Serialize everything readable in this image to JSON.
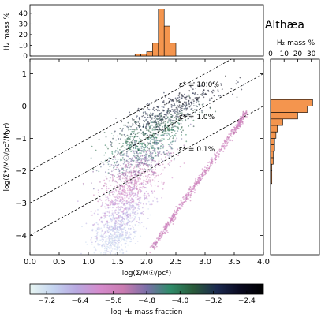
{
  "figure": {
    "title": "Althæa"
  },
  "chart_data": [
    {
      "type": "scatter",
      "name": "main",
      "xlabel": "log(Σ/M☉/pc²)",
      "ylabel": "log(Σ*/M☉/pc²/Myr)",
      "xlim": [
        0.0,
        4.0
      ],
      "ylim": [
        -4.6,
        1.45
      ],
      "xticks": [
        "0.0",
        "0.5",
        "1.0",
        "1.5",
        "2.0",
        "2.5",
        "3.0",
        "3.5",
        "4.0"
      ],
      "yticks": [
        "−4",
        "−3",
        "−2",
        "−1",
        "0",
        "1"
      ],
      "grid": false,
      "efficiency_lines": [
        {
          "label": "ε* = 10.0%",
          "intercept": -2.0
        },
        {
          "label": "ε* = 1.0%",
          "intercept": -3.0
        },
        {
          "label": "ε* = 0.1%",
          "intercept": -4.0
        }
      ],
      "main_cloud": [
        {
          "x": 2.6,
          "y": 0.25,
          "c": -2.4
        },
        {
          "x": 2.4,
          "y": -0.1,
          "c": -2.8
        },
        {
          "x": 2.2,
          "y": -0.5,
          "c": -3.4
        },
        {
          "x": 2.0,
          "y": -1.0,
          "c": -4.0
        },
        {
          "x": 1.9,
          "y": -1.5,
          "c": -4.6
        },
        {
          "x": 1.8,
          "y": -2.0,
          "c": -5.2
        },
        {
          "x": 1.7,
          "y": -2.6,
          "c": -5.8
        },
        {
          "x": 1.6,
          "y": -3.2,
          "c": -6.4
        },
        {
          "x": 1.5,
          "y": -3.8,
          "c": -6.8
        },
        {
          "x": 1.4,
          "y": -4.4,
          "c": -7.2
        }
      ],
      "pink_branch": [
        {
          "x": 2.1,
          "y": -4.4
        },
        {
          "x": 2.5,
          "y": -3.3
        },
        {
          "x": 3.0,
          "y": -2.0
        },
        {
          "x": 3.5,
          "y": -0.8
        },
        {
          "x": 3.7,
          "y": -0.2
        }
      ]
    },
    {
      "type": "bar",
      "name": "top-histogram",
      "ylabel": "H₂ mass %",
      "yticks": [
        "0",
        "10",
        "20",
        "30",
        "40"
      ],
      "ylim": [
        0,
        48
      ],
      "bins": [
        {
          "x0": 1.8,
          "x1": 1.9,
          "value": 2
        },
        {
          "x0": 1.9,
          "x1": 2.0,
          "value": 2
        },
        {
          "x0": 2.0,
          "x1": 2.1,
          "value": 4
        },
        {
          "x0": 2.1,
          "x1": 2.2,
          "value": 12
        },
        {
          "x0": 2.2,
          "x1": 2.3,
          "value": 44
        },
        {
          "x0": 2.3,
          "x1": 2.4,
          "value": 28
        },
        {
          "x0": 2.4,
          "x1": 2.5,
          "value": 12
        }
      ]
    },
    {
      "type": "bar",
      "name": "side-histogram",
      "xlabel": "H₂ mass %",
      "xticks": [
        "0",
        "10",
        "20",
        "30"
      ],
      "xlim": [
        0,
        36
      ],
      "bins": [
        {
          "y0": 0.0,
          "y1": 0.2,
          "value": 31
        },
        {
          "y0": -0.2,
          "y1": 0.0,
          "value": 27
        },
        {
          "y0": -0.4,
          "y1": -0.2,
          "value": 20
        },
        {
          "y0": -0.6,
          "y1": -0.4,
          "value": 9
        },
        {
          "y0": -0.8,
          "y1": -0.6,
          "value": 5
        },
        {
          "y0": -1.0,
          "y1": -0.8,
          "value": 4
        },
        {
          "y0": -1.2,
          "y1": -1.0,
          "value": 3
        },
        {
          "y0": -1.4,
          "y1": -1.2,
          "value": 3
        },
        {
          "y0": -1.6,
          "y1": -1.4,
          "value": 2
        },
        {
          "y0": -1.8,
          "y1": -1.6,
          "value": 2
        },
        {
          "y0": -2.0,
          "y1": -1.8,
          "value": 1
        },
        {
          "y0": -2.2,
          "y1": -2.0,
          "value": 1
        },
        {
          "y0": -2.4,
          "y1": -2.2,
          "value": 1
        }
      ]
    },
    {
      "type": "colorbar",
      "name": "colorbar",
      "label": "log H₂ mass fraction",
      "ticks": [
        "−7.2",
        "−6.4",
        "−5.6",
        "−4.8",
        "−4.0",
        "−3.2",
        "−2.4"
      ],
      "range": [
        -7.6,
        -2.0
      ],
      "colors": [
        "#e8f6f2",
        "#c4d4f0",
        "#b8a8e0",
        "#d58bcc",
        "#c97bb0",
        "#7a6fa8",
        "#2f8c6a",
        "#2a5a3a",
        "#1c2a50",
        "#0a0a20",
        "#000000"
      ]
    }
  ]
}
